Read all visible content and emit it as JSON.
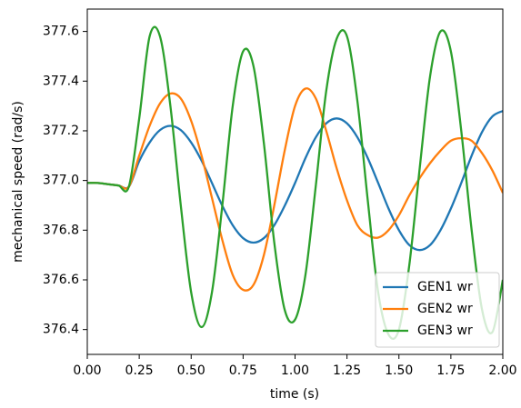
{
  "chart_data": {
    "type": "line",
    "x_label": "time (s)",
    "y_label": "mechanical speed (rad/s)",
    "x": [
      0,
      0.05,
      0.1,
      0.15,
      0.2,
      0.25,
      0.3,
      0.35,
      0.4,
      0.45,
      0.5,
      0.55,
      0.6,
      0.65,
      0.7,
      0.75,
      0.8,
      0.85,
      0.9,
      0.95,
      1.0,
      1.05,
      1.1,
      1.15,
      1.2,
      1.25,
      1.3,
      1.35,
      1.4,
      1.45,
      1.5,
      1.55,
      1.6,
      1.65,
      1.7,
      1.75,
      1.8,
      1.85,
      1.9,
      1.95,
      2.0
    ],
    "series": [
      {
        "name": "GEN1 wr",
        "color": "#1f77b4",
        "values": [
          376.99,
          376.99,
          376.985,
          376.98,
          376.975,
          377.078,
          377.153,
          377.203,
          377.22,
          377.203,
          377.153,
          377.08,
          376.99,
          376.898,
          376.82,
          376.768,
          376.75,
          376.768,
          376.82,
          376.898,
          376.99,
          377.09,
          377.174,
          377.23,
          377.25,
          377.23,
          377.174,
          377.09,
          376.99,
          376.887,
          376.8,
          376.74,
          376.72,
          376.74,
          376.8,
          376.887,
          376.99,
          377.1,
          377.195,
          377.258,
          377.28
        ]
      },
      {
        "name": "GEN2 wr",
        "color": "#ff7f0e",
        "values": [
          376.99,
          376.99,
          376.985,
          376.98,
          376.975,
          377.1,
          377.22,
          377.31,
          377.35,
          377.33,
          377.24,
          377.1,
          376.93,
          376.76,
          376.62,
          376.56,
          376.58,
          376.7,
          376.9,
          377.12,
          377.3,
          377.37,
          377.33,
          377.2,
          377.05,
          376.92,
          376.82,
          376.78,
          376.77,
          376.8,
          376.86,
          376.94,
          377.01,
          377.07,
          377.12,
          377.16,
          377.17,
          377.16,
          377.11,
          377.04,
          376.95
        ]
      },
      {
        "name": "GEN3 wr",
        "color": "#2ca02c",
        "values": [
          376.99,
          376.99,
          376.985,
          376.98,
          376.975,
          377.25,
          377.58,
          377.58,
          377.3,
          376.9,
          376.55,
          376.41,
          376.55,
          376.9,
          377.3,
          377.52,
          377.46,
          377.15,
          376.75,
          376.48,
          376.44,
          376.62,
          376.98,
          377.36,
          377.57,
          377.58,
          377.32,
          376.92,
          376.55,
          376.38,
          376.4,
          376.66,
          377.05,
          377.42,
          377.6,
          377.52,
          377.2,
          376.8,
          376.48,
          376.39,
          376.6
        ]
      }
    ],
    "xlim": [
      0,
      2
    ],
    "xticks": [
      {
        "value": 0,
        "label": "0.00"
      },
      {
        "value": 0.25,
        "label": "0.25"
      },
      {
        "value": 0.5,
        "label": "0.50"
      },
      {
        "value": 0.75,
        "label": "0.75"
      },
      {
        "value": 1,
        "label": "1.00"
      },
      {
        "value": 1.25,
        "label": "1.25"
      },
      {
        "value": 1.5,
        "label": "1.50"
      },
      {
        "value": 1.75,
        "label": "1.75"
      },
      {
        "value": 2,
        "label": "2.00"
      }
    ],
    "ylim": [
      376.3,
      377.69
    ],
    "yticks": [
      376.4,
      376.6,
      376.8,
      {
        "value": 377,
        "label": "377.0"
      },
      377.2,
      377.4,
      377.6
    ],
    "legend": "lower right"
  }
}
